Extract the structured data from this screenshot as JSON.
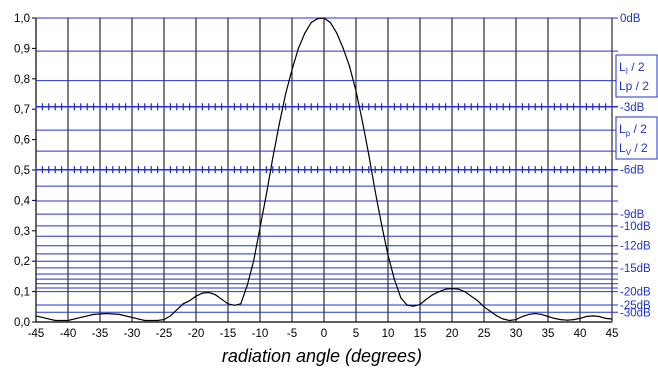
{
  "chart_data": {
    "type": "line",
    "xlabel": "radiation angle (degrees)",
    "ylabel": "",
    "xlim": [
      -45,
      45
    ],
    "ylim": [
      0,
      1
    ],
    "x_ticks": [
      "-45",
      "-40",
      "-35",
      "-30",
      "-25",
      "-20",
      "-15",
      "-10",
      "-5",
      "0",
      "5",
      "10",
      "15",
      "20",
      "25",
      "30",
      "35",
      "40",
      "45"
    ],
    "y_ticks": [
      "0,0",
      "0,1",
      "0,2",
      "0,3",
      "0,4",
      "0,5",
      "0,6",
      "0,7",
      "0,8",
      "0,9",
      "1,0"
    ],
    "grid": true,
    "series": [
      {
        "x": [
          -45,
          -44,
          -42,
          -40,
          -38,
          -36,
          -34,
          -32,
          -30,
          -28,
          -26,
          -25,
          -24,
          -23,
          -22,
          -21,
          -20,
          -19,
          -18,
          -17,
          -16,
          -15,
          -14,
          -13,
          -12,
          -11,
          -10,
          -9,
          -8,
          -7,
          -6,
          -5,
          -4,
          -3,
          -2,
          -1,
          0,
          1,
          2,
          3,
          4,
          5,
          6,
          7,
          8,
          9,
          10,
          11,
          12,
          13,
          14,
          15,
          16,
          17,
          18,
          19,
          20,
          21,
          22,
          23,
          24,
          25,
          26,
          27,
          28,
          29,
          30,
          31,
          32,
          33,
          34,
          35,
          36,
          37,
          38,
          39,
          40,
          41,
          42,
          43,
          44,
          45
        ],
        "y": [
          0.02,
          0.015,
          0.005,
          0.005,
          0.015,
          0.025,
          0.028,
          0.025,
          0.015,
          0.005,
          0.005,
          0.008,
          0.02,
          0.04,
          0.06,
          0.07,
          0.085,
          0.095,
          0.097,
          0.09,
          0.075,
          0.06,
          0.055,
          0.06,
          0.12,
          0.2,
          0.31,
          0.42,
          0.54,
          0.65,
          0.75,
          0.83,
          0.9,
          0.95,
          0.985,
          0.998,
          1.0,
          0.985,
          0.95,
          0.9,
          0.84,
          0.76,
          0.66,
          0.55,
          0.43,
          0.32,
          0.22,
          0.14,
          0.08,
          0.055,
          0.052,
          0.058,
          0.075,
          0.09,
          0.1,
          0.108,
          0.11,
          0.108,
          0.1,
          0.085,
          0.07,
          0.05,
          0.035,
          0.02,
          0.01,
          0.005,
          0.008,
          0.018,
          0.025,
          0.028,
          0.025,
          0.018,
          0.012,
          0.008,
          0.006,
          0.008,
          0.012,
          0.018,
          0.02,
          0.018,
          0.012,
          0.01
        ]
      }
    ],
    "db_lines": [
      {
        "value": 0.891,
        "label": ""
      },
      {
        "value": 0.794,
        "label": ""
      },
      {
        "value": 0.708,
        "label": "-3dB",
        "marked": true
      },
      {
        "value": 0.631,
        "label": ""
      },
      {
        "value": 0.562,
        "label": ""
      },
      {
        "value": 0.501,
        "label": "-6dB",
        "marked": true
      },
      {
        "value": 0.447,
        "label": ""
      },
      {
        "value": 0.398,
        "label": ""
      },
      {
        "value": 0.355,
        "label": "-9dB"
      },
      {
        "value": 0.316,
        "label": "-10dB"
      },
      {
        "value": 0.282,
        "label": ""
      },
      {
        "value": 0.251,
        "label": "-12dB"
      },
      {
        "value": 0.224,
        "label": ""
      },
      {
        "value": 0.2,
        "label": ""
      },
      {
        "value": 0.178,
        "label": "-15dB"
      },
      {
        "value": 0.158,
        "label": ""
      },
      {
        "value": 0.141,
        "label": ""
      },
      {
        "value": 0.126,
        "label": ""
      },
      {
        "value": 0.112,
        "label": ""
      },
      {
        "value": 0.1,
        "label": "-20dB"
      },
      {
        "value": 0.056,
        "label": "-25dB"
      },
      {
        "value": 0.032,
        "label": "-30dB"
      }
    ],
    "db_top_label": "0dB",
    "boxes": [
      {
        "lines": [
          {
            "main": "L",
            "sub": "I",
            "tail": " / 2"
          },
          {
            "main": "Lp / 2",
            "sub": "",
            "tail": ""
          }
        ]
      },
      {
        "lines": [
          {
            "main": "L",
            "sub": "p",
            "tail": " / 2"
          },
          {
            "main": "L",
            "sub": "V",
            "tail": " / 2"
          }
        ]
      }
    ],
    "colors": {
      "grid_blue": "#2233cc",
      "curve": "#000000",
      "axis": "#000000"
    }
  }
}
